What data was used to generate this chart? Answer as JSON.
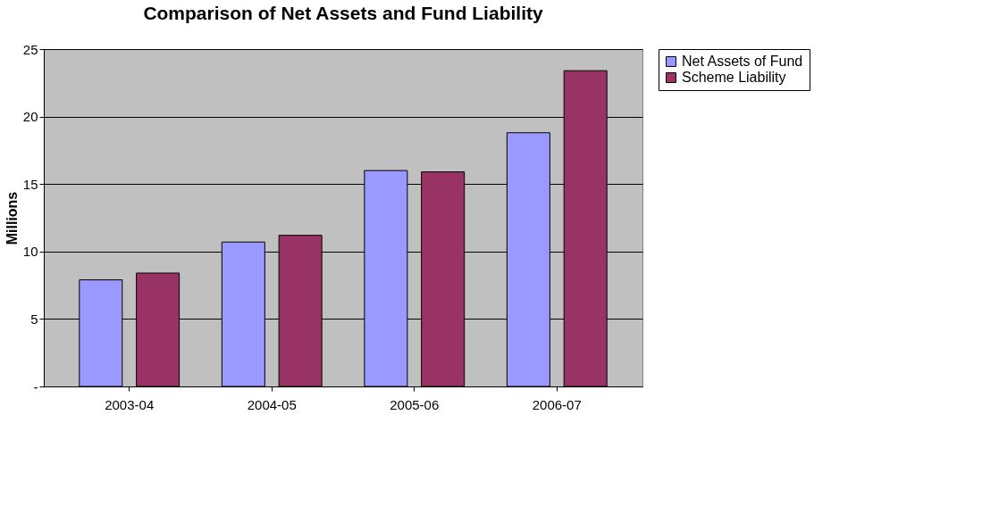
{
  "chart_data": {
    "type": "bar",
    "title": "Comparison of Net Assets and Fund Liability",
    "ylabel": "Millions",
    "categories": [
      "2003-04",
      "2004-05",
      "2005-06",
      "2006-07"
    ],
    "series": [
      {
        "name": "Net Assets of Fund",
        "color": "#9999ff",
        "values": [
          7.9,
          10.7,
          16.0,
          18.8
        ]
      },
      {
        "name": "Scheme Liability",
        "color": "#993366",
        "values": [
          8.4,
          11.2,
          15.9,
          23.4
        ]
      }
    ],
    "ylim": [
      0,
      25
    ],
    "yticks": [
      {
        "value": 0,
        "label": "-"
      },
      5,
      10,
      15,
      20,
      25
    ],
    "grid": "y",
    "legend": "right"
  }
}
